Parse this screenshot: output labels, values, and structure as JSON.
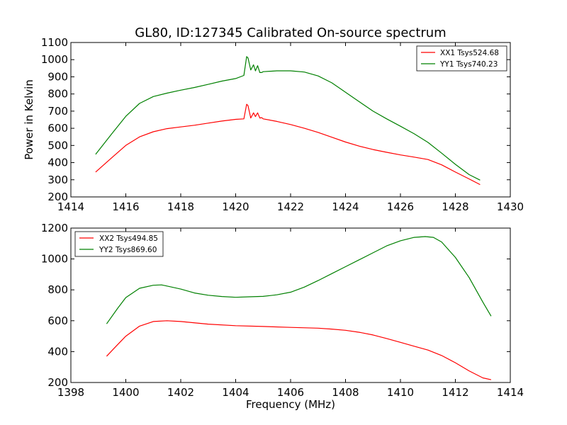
{
  "chart_data": [
    {
      "type": "line",
      "title": "GL80, ID:127345 Calibrated On-source spectrum",
      "xlabel": "",
      "ylabel": "Power in Kelvin",
      "xlim": [
        1414,
        1430
      ],
      "ylim": [
        200,
        1100
      ],
      "xticks": [
        "1414",
        "1416",
        "1418",
        "1420",
        "1422",
        "1424",
        "1426",
        "1428",
        "1430"
      ],
      "yticks": [
        "200",
        "300",
        "400",
        "500",
        "600",
        "700",
        "800",
        "900",
        "1000",
        "1100"
      ],
      "legend_position": "top-right",
      "series": [
        {
          "name": "XX1 Tsys524.68",
          "color": "#ff0000",
          "x": [
            1414.9,
            1415.5,
            1416.0,
            1416.5,
            1417.0,
            1417.5,
            1418.0,
            1418.5,
            1419.0,
            1419.5,
            1420.0,
            1420.3,
            1420.4,
            1420.45,
            1420.55,
            1420.65,
            1420.72,
            1420.8,
            1420.88,
            1420.95,
            1421.0,
            1421.5,
            1422.0,
            1422.5,
            1423.0,
            1423.5,
            1424.0,
            1424.5,
            1425.0,
            1425.5,
            1426.0,
            1426.5,
            1427.0,
            1427.5,
            1428.0,
            1428.5,
            1428.9
          ],
          "values": [
            345,
            430,
            500,
            550,
            580,
            598,
            608,
            618,
            630,
            642,
            652,
            655,
            740,
            732,
            660,
            690,
            668,
            690,
            660,
            662,
            655,
            640,
            622,
            600,
            576,
            548,
            520,
            496,
            476,
            460,
            445,
            432,
            418,
            387,
            345,
            305,
            272
          ]
        },
        {
          "name": "YY1 Tsys740.23",
          "color": "#008000",
          "x": [
            1414.9,
            1415.5,
            1416.0,
            1416.5,
            1417.0,
            1417.5,
            1418.0,
            1418.5,
            1419.0,
            1419.5,
            1420.0,
            1420.3,
            1420.4,
            1420.45,
            1420.55,
            1420.65,
            1420.72,
            1420.8,
            1420.88,
            1420.95,
            1421.0,
            1421.5,
            1422.0,
            1422.5,
            1423.0,
            1423.5,
            1424.0,
            1424.5,
            1425.0,
            1425.5,
            1426.0,
            1426.5,
            1427.0,
            1427.5,
            1428.0,
            1428.5,
            1428.9
          ],
          "values": [
            448,
            570,
            670,
            745,
            785,
            805,
            822,
            838,
            856,
            875,
            890,
            908,
            1018,
            1010,
            940,
            970,
            935,
            965,
            925,
            925,
            930,
            935,
            935,
            928,
            905,
            865,
            810,
            755,
            700,
            655,
            612,
            568,
            518,
            455,
            390,
            330,
            298
          ]
        }
      ]
    },
    {
      "type": "line",
      "title": "",
      "xlabel": "Frequency (MHz)",
      "ylabel": "",
      "xlim": [
        1398,
        1414
      ],
      "ylim": [
        200,
        1200
      ],
      "xticks": [
        "1398",
        "1400",
        "1402",
        "1404",
        "1406",
        "1408",
        "1410",
        "1412",
        "1414"
      ],
      "yticks": [
        "200",
        "400",
        "600",
        "800",
        "1000",
        "1200"
      ],
      "legend_position": "top-left",
      "series": [
        {
          "name": "XX2 Tsys494.85",
          "color": "#ff0000",
          "x": [
            1399.3,
            1399.7,
            1400.0,
            1400.5,
            1401.0,
            1401.5,
            1402.0,
            1403.0,
            1404.0,
            1405.0,
            1406.0,
            1407.0,
            1407.5,
            1408.0,
            1408.5,
            1409.0,
            1409.5,
            1410.0,
            1410.5,
            1411.0,
            1411.5,
            1412.0,
            1412.5,
            1413.0,
            1413.3
          ],
          "values": [
            370,
            445,
            500,
            565,
            595,
            600,
            595,
            578,
            568,
            563,
            557,
            552,
            546,
            538,
            525,
            508,
            485,
            460,
            435,
            410,
            375,
            328,
            275,
            230,
            218
          ]
        },
        {
          "name": "YY2 Tsys869.60",
          "color": "#008000",
          "x": [
            1399.3,
            1399.7,
            1400.0,
            1400.5,
            1401.0,
            1401.3,
            1401.5,
            1402.0,
            1402.5,
            1403.0,
            1403.5,
            1404.0,
            1404.5,
            1405.0,
            1405.5,
            1406.0,
            1406.5,
            1407.0,
            1407.5,
            1408.0,
            1408.5,
            1409.0,
            1409.5,
            1410.0,
            1410.5,
            1410.9,
            1411.2,
            1411.5,
            1412.0,
            1412.5,
            1413.0,
            1413.3
          ],
          "values": [
            580,
            680,
            750,
            810,
            830,
            832,
            825,
            805,
            780,
            765,
            757,
            752,
            755,
            758,
            768,
            785,
            818,
            860,
            905,
            950,
            995,
            1040,
            1085,
            1118,
            1140,
            1145,
            1140,
            1110,
            1010,
            880,
            720,
            630
          ]
        }
      ]
    }
  ]
}
